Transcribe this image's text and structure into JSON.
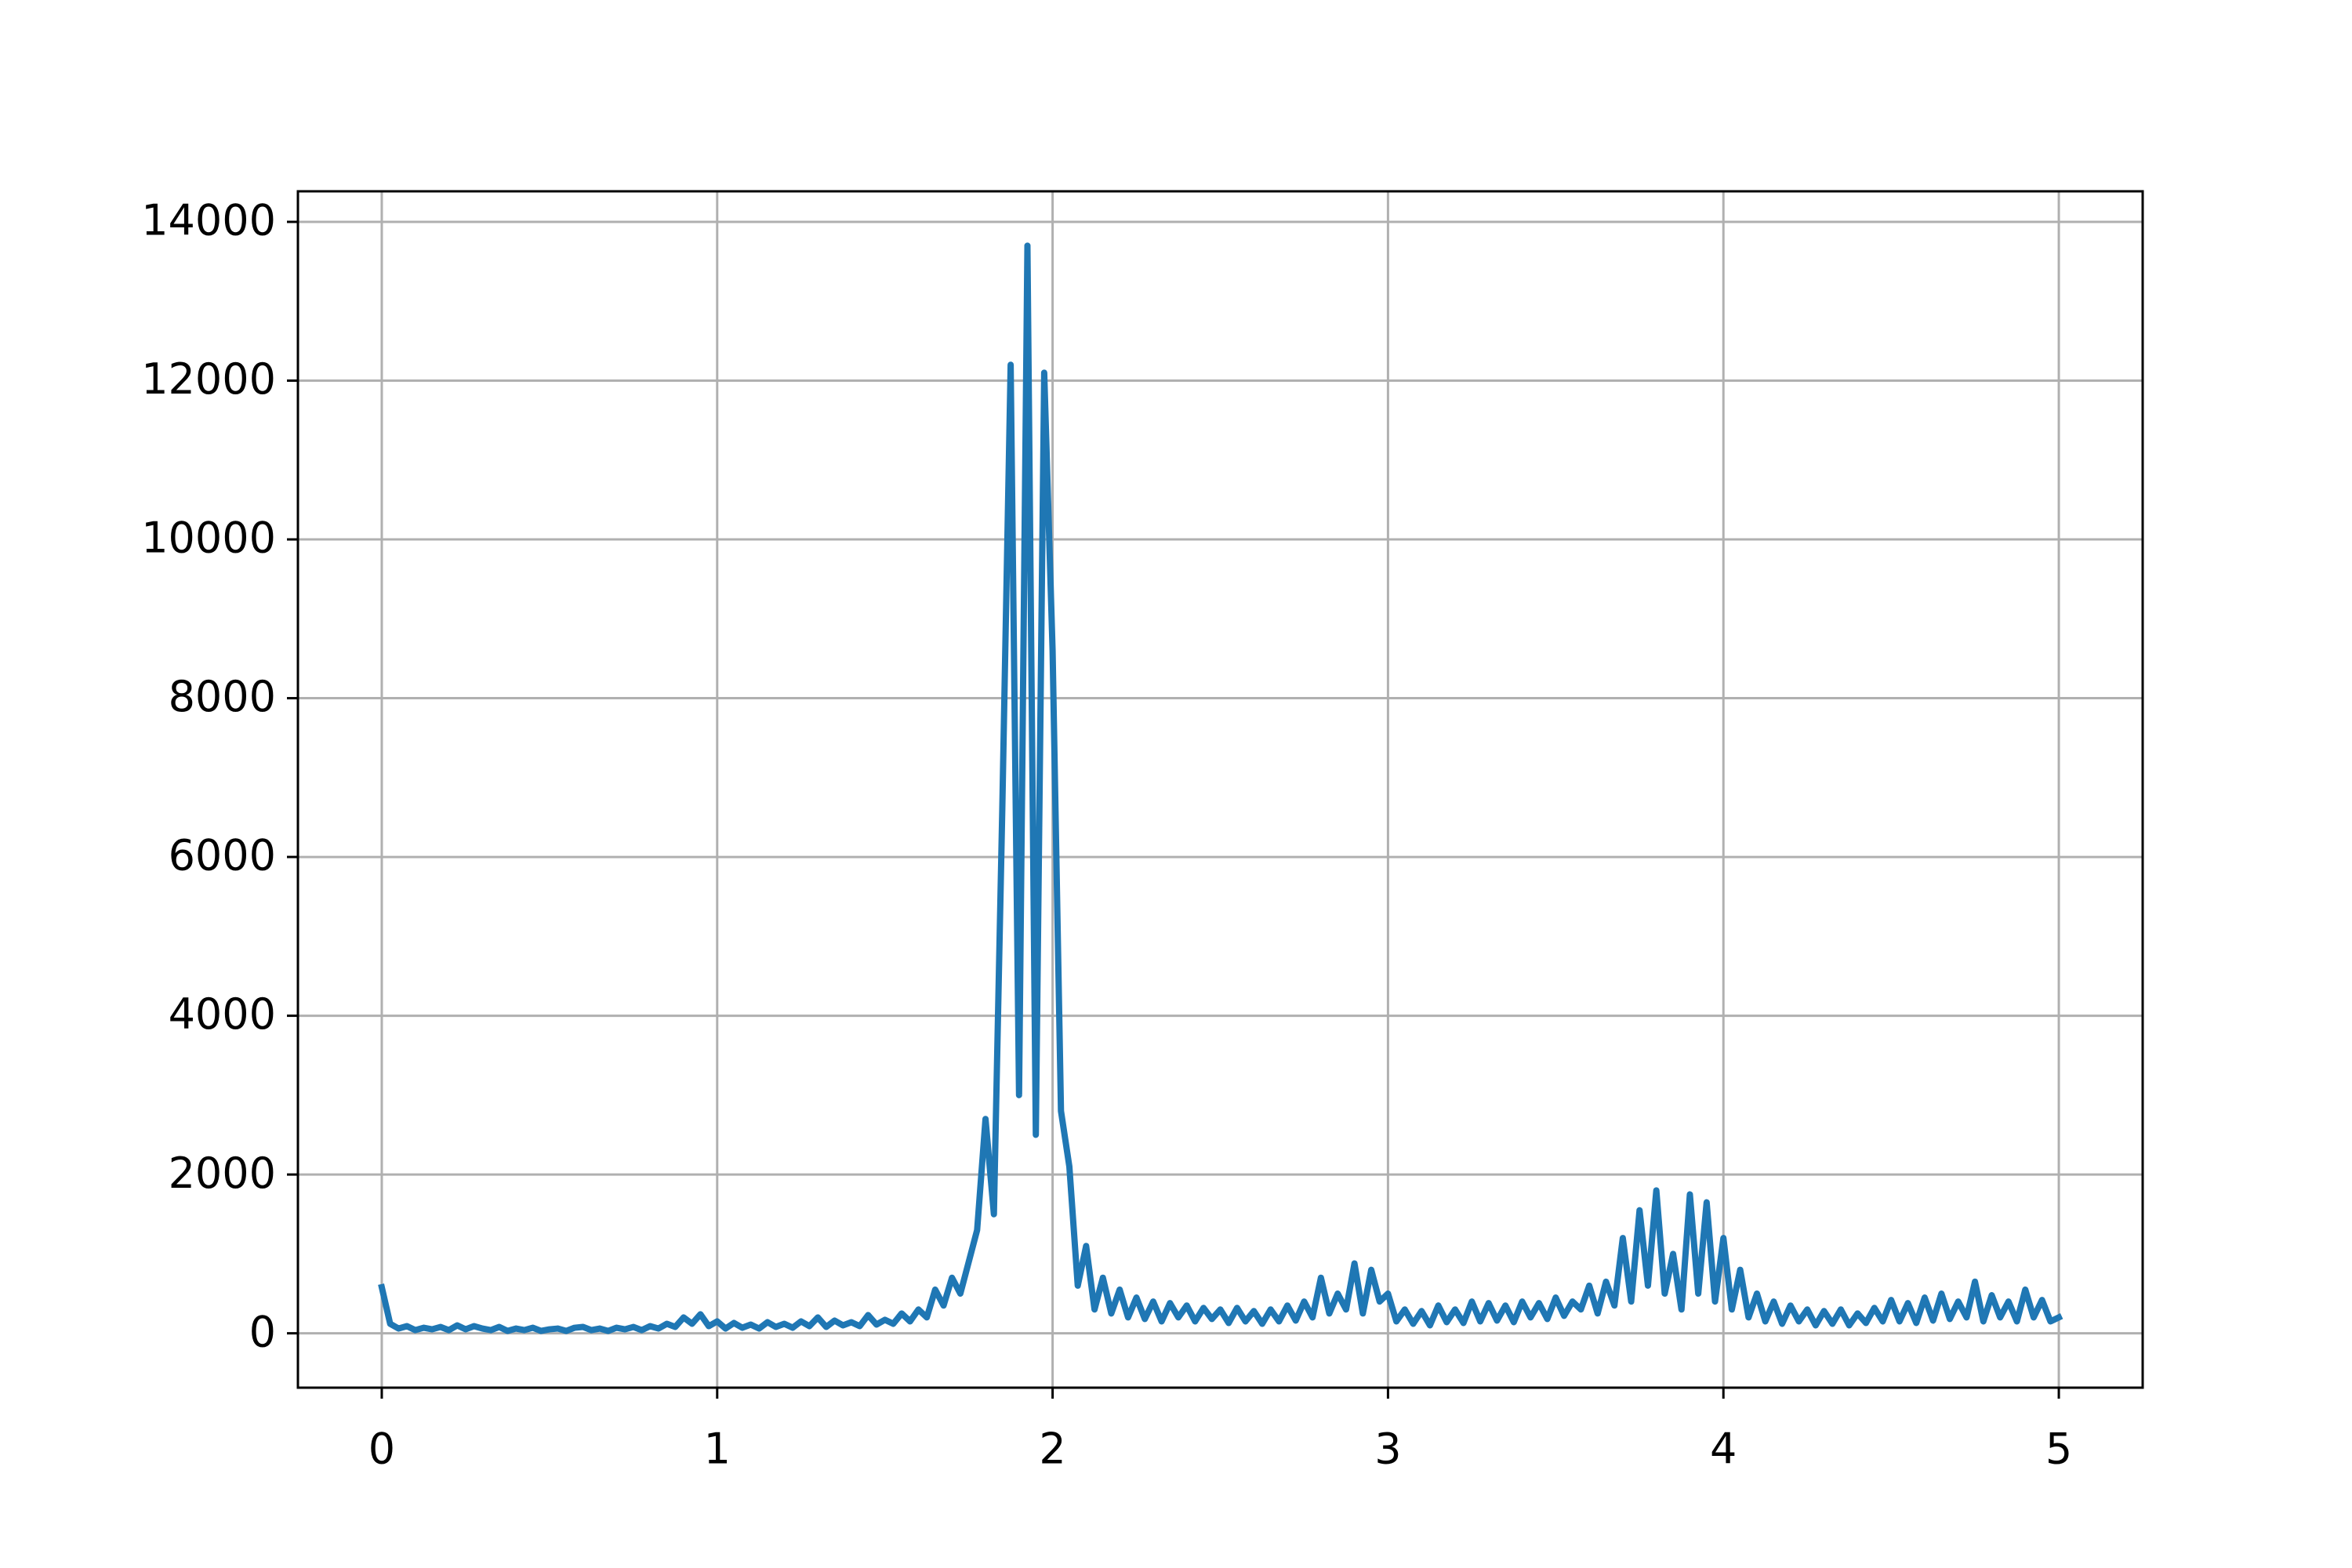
{
  "chart_data": {
    "type": "line",
    "color": "#1f77b4",
    "grid": true,
    "xlim": [
      -0.25,
      5.25
    ],
    "ylim": [
      -685,
      14385
    ],
    "xticks": [
      0,
      1,
      2,
      3,
      4,
      5
    ],
    "yticks": [
      0,
      2000,
      4000,
      6000,
      8000,
      10000,
      12000,
      14000
    ],
    "x": [
      0,
      0.025,
      0.05,
      0.075,
      0.1,
      0.125,
      0.15,
      0.175,
      0.2,
      0.225,
      0.25,
      0.275,
      0.3,
      0.325,
      0.35,
      0.375,
      0.4,
      0.425,
      0.45,
      0.475,
      0.5,
      0.525,
      0.55,
      0.575,
      0.6,
      0.625,
      0.65,
      0.675,
      0.7,
      0.725,
      0.75,
      0.775,
      0.8,
      0.825,
      0.85,
      0.875,
      0.9,
      0.925,
      0.95,
      0.975,
      1,
      1.025,
      1.05,
      1.075,
      1.1,
      1.125,
      1.15,
      1.175,
      1.2,
      1.225,
      1.25,
      1.275,
      1.3,
      1.325,
      1.35,
      1.375,
      1.4,
      1.425,
      1.45,
      1.475,
      1.5,
      1.525,
      1.55,
      1.575,
      1.6,
      1.625,
      1.65,
      1.675,
      1.7,
      1.725,
      1.75,
      1.775,
      1.8,
      1.825,
      1.85,
      1.875,
      1.9,
      1.925,
      1.95,
      1.975,
      2,
      2.025,
      2.05,
      2.075,
      2.1,
      2.125,
      2.15,
      2.175,
      2.2,
      2.225,
      2.25,
      2.275,
      2.3,
      2.325,
      2.35,
      2.375,
      2.4,
      2.425,
      2.45,
      2.475,
      2.5,
      2.525,
      2.55,
      2.575,
      2.6,
      2.625,
      2.65,
      2.675,
      2.7,
      2.725,
      2.75,
      2.775,
      2.8,
      2.825,
      2.85,
      2.875,
      2.9,
      2.925,
      2.95,
      2.975,
      3,
      3.025,
      3.05,
      3.075,
      3.1,
      3.125,
      3.15,
      3.175,
      3.2,
      3.225,
      3.25,
      3.275,
      3.3,
      3.325,
      3.35,
      3.375,
      3.4,
      3.425,
      3.45,
      3.475,
      3.5,
      3.525,
      3.55,
      3.575,
      3.6,
      3.625,
      3.65,
      3.675,
      3.7,
      3.725,
      3.75,
      3.775,
      3.8,
      3.825,
      3.85,
      3.875,
      3.9,
      3.925,
      3.95,
      3.975,
      4,
      4.025,
      4.05,
      4.075,
      4.1,
      4.125,
      4.15,
      4.175,
      4.2,
      4.225,
      4.25,
      4.275,
      4.3,
      4.325,
      4.35,
      4.375,
      4.4,
      4.425,
      4.45,
      4.475,
      4.5,
      4.525,
      4.55,
      4.575,
      4.6,
      4.625,
      4.65,
      4.675,
      4.7,
      4.725,
      4.75,
      4.775,
      4.8,
      4.825,
      4.85,
      4.875,
      4.9,
      4.925,
      4.95,
      4.975,
      5
    ],
    "values": [
      580,
      120,
      60,
      90,
      40,
      70,
      50,
      80,
      40,
      100,
      50,
      90,
      60,
      40,
      80,
      30,
      60,
      40,
      70,
      30,
      50,
      60,
      30,
      70,
      80,
      40,
      60,
      30,
      70,
      50,
      80,
      40,
      90,
      60,
      120,
      80,
      200,
      120,
      240,
      90,
      150,
      60,
      130,
      70,
      110,
      60,
      140,
      80,
      120,
      70,
      150,
      90,
      200,
      80,
      160,
      100,
      140,
      90,
      230,
      110,
      170,
      120,
      250,
      150,
      300,
      200,
      550,
      350,
      700,
      500,
      900,
      1300,
      2700,
      1500,
      6600,
      12200,
      3000,
      13700,
      2500,
      12100,
      8600,
      2800,
      2100,
      600,
      1100,
      300,
      700,
      250,
      550,
      200,
      450,
      180,
      400,
      150,
      380,
      200,
      350,
      150,
      320,
      180,
      300,
      130,
      320,
      150,
      280,
      120,
      300,
      150,
      350,
      160,
      400,
      200,
      700,
      250,
      500,
      300,
      880,
      250,
      800,
      400,
      500,
      150,
      300,
      120,
      280,
      100,
      350,
      140,
      300,
      130,
      400,
      150,
      380,
      160,
      350,
      140,
      400,
      200,
      380,
      180,
      450,
      220,
      400,
      300,
      600,
      250,
      650,
      350,
      1200,
      400,
      1550,
      600,
      1800,
      500,
      1000,
      300,
      1750,
      500,
      1650,
      400,
      1200,
      300,
      800,
      200,
      500,
      150,
      400,
      120,
      350,
      150,
      300,
      100,
      280,
      120,
      300,
      100,
      250,
      130,
      320,
      150,
      420,
      150,
      380,
      130,
      450,
      160,
      500,
      180,
      400,
      200,
      650,
      150,
      480,
      200,
      400,
      150,
      550,
      200,
      420,
      150,
      200
    ]
  }
}
